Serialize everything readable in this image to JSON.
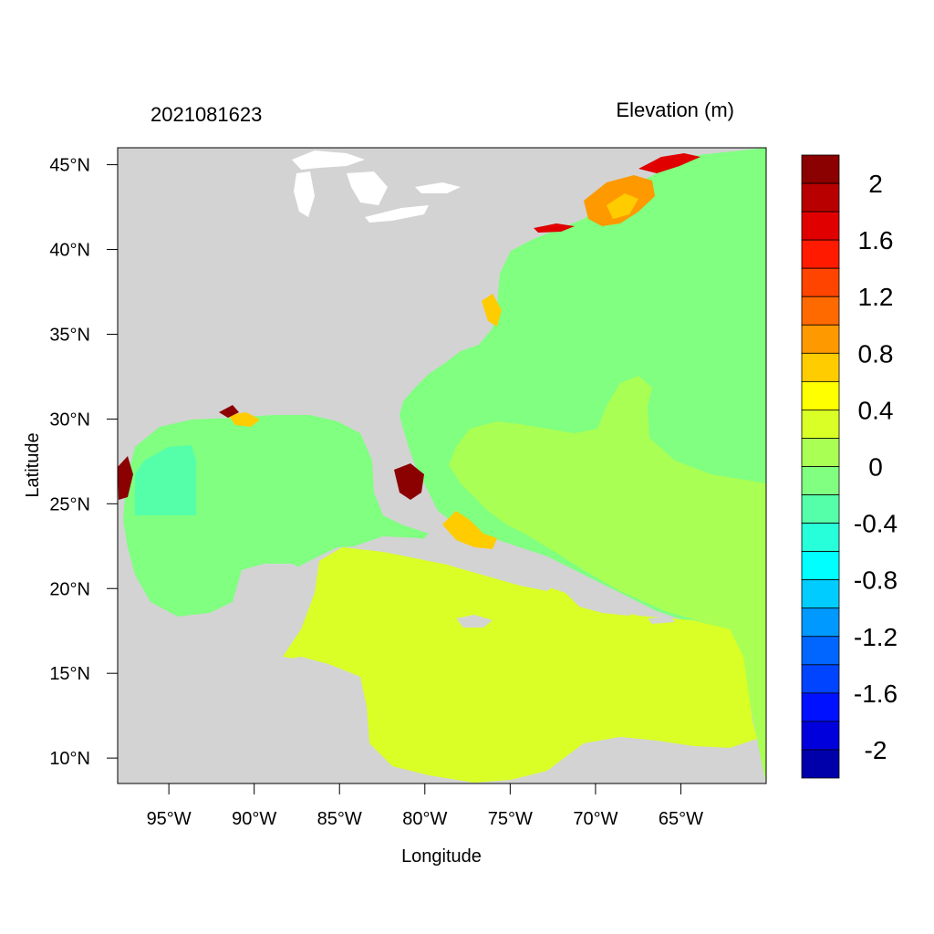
{
  "header": {
    "timestamp": "2021081623",
    "variable_title": "Elevation (m)"
  },
  "axes": {
    "xlabel": "Longitude",
    "ylabel": "Latitude",
    "x_ticks": [
      "95°W",
      "90°W",
      "85°W",
      "80°W",
      "75°W",
      "70°W",
      "65°W"
    ],
    "y_ticks": [
      "45°N",
      "40°N",
      "35°N",
      "30°N",
      "25°N",
      "20°N",
      "15°N",
      "10°N"
    ]
  },
  "map_extent": {
    "lon_min": -98,
    "lon_max": -60,
    "lat_min": 8.5,
    "lat_max": 46
  },
  "tick_values": {
    "lon": [
      -95,
      -90,
      -85,
      -80,
      -75,
      -70,
      -65
    ],
    "lat": [
      45,
      40,
      35,
      30,
      25,
      20,
      15,
      10
    ]
  },
  "colorbar": {
    "labels": [
      "2",
      "1.6",
      "1.2",
      "0.8",
      "0.4",
      "0",
      "-0.4",
      "-0.8",
      "-1.2",
      "-1.6",
      "-2"
    ],
    "colors": [
      "#8b0000",
      "#b80000",
      "#e00000",
      "#ff1a00",
      "#ff4400",
      "#ff6a00",
      "#ff9900",
      "#ffcc00",
      "#ffff00",
      "#d9ff26",
      "#aaff55",
      "#80ff80",
      "#55ffaa",
      "#26ffd9",
      "#00ffff",
      "#00ccff",
      "#0099ff",
      "#0066ff",
      "#0044ff",
      "#0011ff",
      "#0000dd",
      "#0000aa"
    ]
  },
  "colors": {
    "land": "#d3d3d3",
    "lake": "#ffffff",
    "atlantic": "#80ff80",
    "tropical": "#aaff55",
    "caribbean": "#d9ff26",
    "gulf_basin": "#55ffaa",
    "surge_high": "#8b0000",
    "surge_mid": "#ffcc00",
    "surge_orange": "#ff9900",
    "surge_red": "#e00000"
  }
}
